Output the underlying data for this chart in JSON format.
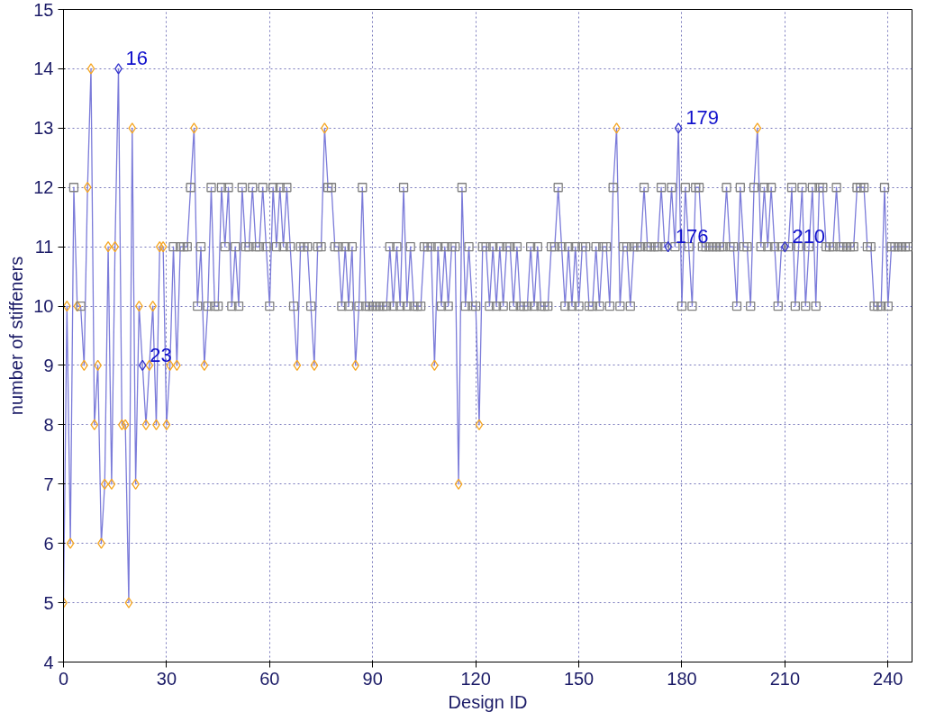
{
  "chart_data": {
    "type": "line",
    "xlabel": "Design ID",
    "ylabel": "number of stiffeners",
    "xlim": [
      0,
      247
    ],
    "ylim": [
      4,
      15
    ],
    "xticks": [
      0,
      30,
      60,
      90,
      120,
      150,
      180,
      210,
      240
    ],
    "yticks": [
      4,
      5,
      6,
      7,
      8,
      9,
      10,
      11,
      12,
      13,
      14,
      15
    ],
    "grid": true,
    "x": [
      0,
      1,
      2,
      3,
      4,
      5,
      6,
      7,
      8,
      9,
      10,
      11,
      12,
      13,
      14,
      15,
      16,
      17,
      18,
      19,
      20,
      21,
      22,
      23,
      24,
      25,
      26,
      27,
      28,
      29,
      30,
      31,
      32,
      33,
      34,
      35,
      36,
      37,
      38,
      39,
      40,
      41,
      42,
      43,
      44,
      45,
      46,
      47,
      48,
      49,
      50,
      51,
      52,
      53,
      54,
      55,
      56,
      57,
      58,
      59,
      60,
      61,
      62,
      63,
      64,
      65,
      66,
      67,
      68,
      69,
      70,
      71,
      72,
      73,
      74,
      75,
      76,
      77,
      78,
      79,
      80,
      81,
      82,
      83,
      84,
      85,
      86,
      87,
      88,
      89,
      90,
      91,
      92,
      93,
      94,
      95,
      96,
      97,
      98,
      99,
      100,
      101,
      102,
      103,
      104,
      105,
      106,
      107,
      108,
      109,
      110,
      111,
      112,
      113,
      114,
      115,
      116,
      117,
      118,
      119,
      120,
      121,
      122,
      123,
      124,
      125,
      126,
      127,
      128,
      129,
      130,
      131,
      132,
      133,
      134,
      135,
      136,
      137,
      138,
      139,
      140,
      141,
      142,
      143,
      144,
      145,
      146,
      147,
      148,
      149,
      150,
      151,
      152,
      153,
      154,
      155,
      156,
      157,
      158,
      159,
      160,
      161,
      162,
      163,
      164,
      165,
      166,
      167,
      168,
      169,
      170,
      171,
      172,
      173,
      174,
      175,
      176,
      177,
      178,
      179,
      180,
      181,
      182,
      183,
      184,
      185,
      186,
      187,
      188,
      189,
      190,
      191,
      192,
      193,
      194,
      195,
      196,
      197,
      198,
      199,
      200,
      201,
      202,
      203,
      204,
      205,
      206,
      207,
      208,
      209,
      210,
      211,
      212,
      213,
      214,
      215,
      216,
      217,
      218,
      219,
      220,
      221,
      222,
      223,
      224,
      225,
      226,
      227,
      228,
      229,
      230,
      231,
      232,
      233,
      234,
      235,
      236,
      237,
      238,
      239,
      240,
      241,
      242,
      243,
      244,
      245,
      246
    ],
    "series": [
      {
        "color": "#7b7bd9",
        "marker": "none",
        "values": [
          5,
          10,
          6,
          12,
          10,
          10,
          9,
          12,
          14,
          8,
          9,
          6,
          7,
          11,
          7,
          11,
          14,
          8,
          8,
          5,
          13,
          7,
          10,
          9,
          8,
          9,
          10,
          8,
          11,
          11,
          8,
          9,
          11,
          9,
          11,
          11,
          11,
          12,
          13,
          10,
          11,
          9,
          10,
          12,
          10,
          10,
          12,
          11,
          12,
          10,
          11,
          10,
          12,
          11,
          11,
          12,
          11,
          11,
          12,
          11,
          10,
          12,
          11,
          12,
          11,
          12,
          11,
          10,
          9,
          11,
          11,
          11,
          10,
          9,
          11,
          11,
          13,
          12,
          12,
          11,
          11,
          10,
          11,
          10,
          11,
          9,
          10,
          12,
          10,
          10,
          10,
          10,
          10,
          10,
          10,
          11,
          10,
          11,
          10,
          12,
          10,
          11,
          10,
          10,
          10,
          11,
          11,
          11,
          9,
          11,
          10,
          11,
          10,
          11,
          11,
          7,
          12,
          10,
          11,
          10,
          10,
          8,
          11,
          11,
          10,
          11,
          10,
          11,
          10,
          11,
          11,
          10,
          11,
          10,
          10,
          10,
          11,
          10,
          11,
          10,
          10,
          10,
          11,
          11,
          12,
          11,
          10,
          11,
          10,
          11,
          10,
          11,
          11,
          10,
          10,
          11,
          10,
          11,
          11,
          10,
          12,
          13,
          10,
          11,
          11,
          10,
          11,
          11,
          11,
          12,
          11,
          11,
          11,
          11,
          12,
          11,
          11,
          12,
          11,
          13,
          10,
          12,
          11,
          10,
          12,
          12,
          11,
          11,
          11,
          11,
          11,
          11,
          11,
          12,
          11,
          11,
          10,
          12,
          11,
          11,
          10,
          12,
          13,
          11,
          12,
          11,
          12,
          11,
          10,
          11,
          11,
          11,
          12,
          10,
          11,
          12,
          10,
          11,
          12,
          10,
          12,
          12,
          11,
          11,
          11,
          12,
          11,
          11,
          11,
          11,
          11,
          12,
          12,
          12,
          11,
          11,
          10,
          10,
          10,
          12,
          10,
          11,
          11,
          11,
          11,
          11,
          11
        ]
      },
      {
        "type": "scatter",
        "color": "#f5a623",
        "marker": "diamond",
        "x": [
          0,
          1,
          2,
          4,
          6,
          7,
          8,
          9,
          10,
          11,
          12,
          13,
          14,
          15,
          17,
          18,
          19,
          20,
          21,
          22,
          24,
          25,
          26,
          27,
          28,
          29,
          30,
          31,
          33,
          38,
          41,
          68,
          73,
          76,
          85,
          108,
          115,
          121,
          161,
          202
        ],
        "values": [
          5,
          10,
          6,
          10,
          9,
          12,
          14,
          8,
          9,
          6,
          7,
          11,
          7,
          11,
          8,
          8,
          5,
          13,
          7,
          10,
          8,
          9,
          10,
          8,
          11,
          11,
          8,
          9,
          9,
          13,
          9,
          9,
          9,
          13,
          9,
          9,
          7,
          8,
          13,
          13
        ]
      },
      {
        "type": "scatter",
        "color": "#808080",
        "marker": "square",
        "values": [
          null,
          null,
          null,
          12,
          null,
          10,
          null,
          null,
          null,
          null,
          null,
          null,
          null,
          null,
          null,
          null,
          null,
          null,
          null,
          null,
          null,
          null,
          null,
          null,
          null,
          null,
          null,
          null,
          null,
          null,
          null,
          null,
          11,
          null,
          11,
          11,
          11,
          12,
          null,
          10,
          11,
          null,
          10,
          12,
          10,
          10,
          12,
          11,
          12,
          10,
          11,
          10,
          12,
          11,
          11,
          12,
          11,
          11,
          12,
          11,
          10,
          12,
          11,
          12,
          11,
          12,
          11,
          10,
          null,
          11,
          11,
          11,
          10,
          null,
          11,
          11,
          null,
          12,
          12,
          11,
          11,
          10,
          11,
          10,
          11,
          null,
          10,
          12,
          10,
          10,
          10,
          10,
          10,
          10,
          10,
          11,
          10,
          11,
          10,
          12,
          10,
          11,
          10,
          10,
          10,
          11,
          11,
          11,
          null,
          11,
          10,
          11,
          10,
          11,
          11,
          null,
          12,
          10,
          11,
          10,
          10,
          null,
          11,
          11,
          10,
          11,
          10,
          11,
          10,
          11,
          11,
          10,
          11,
          10,
          10,
          10,
          11,
          10,
          11,
          10,
          10,
          10,
          11,
          11,
          12,
          11,
          10,
          11,
          10,
          11,
          10,
          11,
          11,
          10,
          10,
          11,
          10,
          11,
          11,
          10,
          12,
          null,
          10,
          11,
          11,
          10,
          11,
          11,
          11,
          12,
          11,
          11,
          11,
          11,
          12,
          11,
          null,
          12,
          11,
          null,
          10,
          12,
          11,
          10,
          12,
          12,
          11,
          11,
          11,
          11,
          11,
          11,
          11,
          12,
          11,
          11,
          10,
          12,
          11,
          11,
          10,
          12,
          null,
          11,
          12,
          11,
          12,
          11,
          10,
          11,
          null,
          11,
          12,
          10,
          11,
          12,
          10,
          11,
          12,
          10,
          12,
          12,
          11,
          11,
          11,
          12,
          11,
          11,
          11,
          11,
          11,
          12,
          12,
          12,
          11,
          11,
          10,
          10,
          10,
          12,
          10,
          11,
          11,
          11,
          11,
          11,
          11
        ]
      },
      {
        "type": "scatter",
        "color": "#3333cc",
        "marker": "diamond",
        "x": [
          16,
          23,
          176,
          179,
          210
        ],
        "values": [
          14,
          9,
          11,
          13,
          11
        ]
      }
    ],
    "annotations": [
      {
        "text": "16",
        "x": 16,
        "y": 14
      },
      {
        "text": "23",
        "x": 23,
        "y": 9
      },
      {
        "text": "176",
        "x": 176,
        "y": 11
      },
      {
        "text": "179",
        "x": 179,
        "y": 13
      },
      {
        "text": "210",
        "x": 210,
        "y": 11
      }
    ]
  }
}
